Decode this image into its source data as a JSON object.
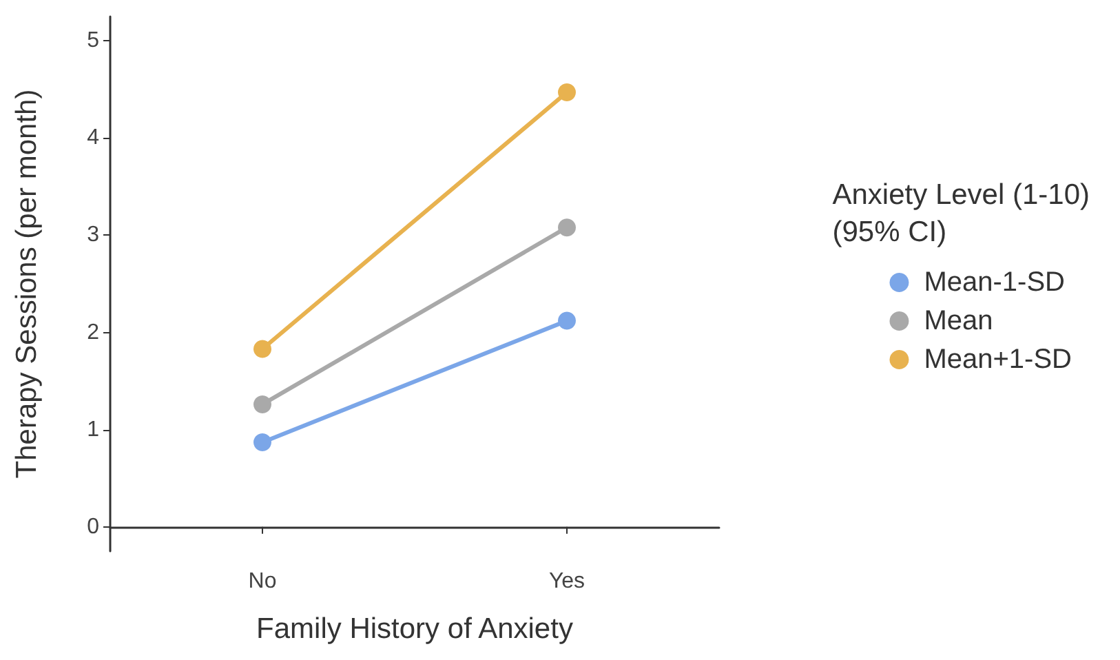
{
  "chart_data": {
    "type": "line",
    "xlabel": "Family History of Anxiety",
    "ylabel": "Therapy Sessions (per month)",
    "legend_title": "Anxiety Level (1-10)\n(95% CI)",
    "categories": [
      "No",
      "Yes"
    ],
    "series": [
      {
        "name": "Mean-1-SD",
        "color": "#7ba6e8",
        "values": [
          0.87,
          2.12
        ]
      },
      {
        "name": "Mean",
        "color": "#a9a9a9",
        "values": [
          1.26,
          3.08
        ]
      },
      {
        "name": "Mean+1-SD",
        "color": "#e8b24f",
        "values": [
          1.83,
          4.47
        ]
      }
    ],
    "ylim": [
      -0.25,
      5.25
    ],
    "yticks": [
      0,
      1,
      2,
      3,
      4,
      5
    ],
    "grid": false,
    "legend": "right",
    "marker": "circle",
    "line_style": "solid"
  }
}
